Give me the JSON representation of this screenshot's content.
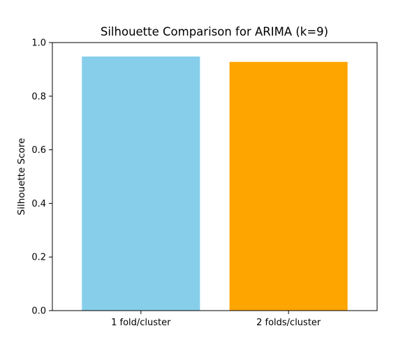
{
  "chart_data": {
    "type": "bar",
    "title": "Silhouette Comparison for ARIMA (k=9)",
    "xlabel": "",
    "ylabel": "Silhouette Score",
    "categories": [
      "1 fold/cluster",
      "2 folds/cluster"
    ],
    "values": [
      0.948,
      0.928
    ],
    "colors": [
      "#87ceeb",
      "#ffa500"
    ],
    "ylim": [
      0,
      1.0
    ],
    "yticks": [
      "0.0",
      "0.2",
      "0.4",
      "0.6",
      "0.8",
      "1.0"
    ],
    "grid": false,
    "legend": "none"
  }
}
